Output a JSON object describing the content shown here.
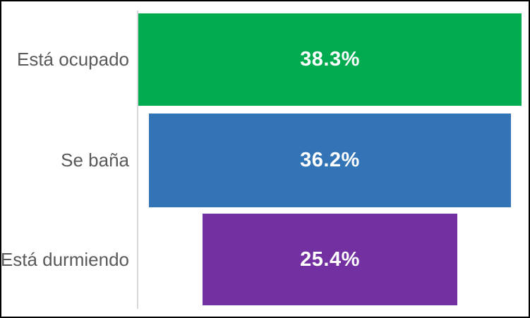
{
  "chart_data": {
    "type": "bar",
    "variant": "funnel-centered-horizontal",
    "title": "",
    "xlabel": "",
    "ylabel": "",
    "categories": [
      "Está ocupado",
      "Se baña",
      "Está durmiendo"
    ],
    "values": [
      38.3,
      36.2,
      25.4
    ],
    "value_labels": [
      "38.3%",
      "36.2%",
      "25.4%"
    ],
    "series_colors": [
      "#00AC4F",
      "#3274B6",
      "#7230A0"
    ],
    "value_label_color": "#FFFFFF",
    "category_label_color": "#595959",
    "axis_line_color": "#D8D8D8",
    "frame_border_color": "#000000",
    "background_color": "#FFFFFF",
    "xlim": [
      0,
      38.3
    ],
    "grid": false,
    "legend": false,
    "axis_ticks": false
  }
}
